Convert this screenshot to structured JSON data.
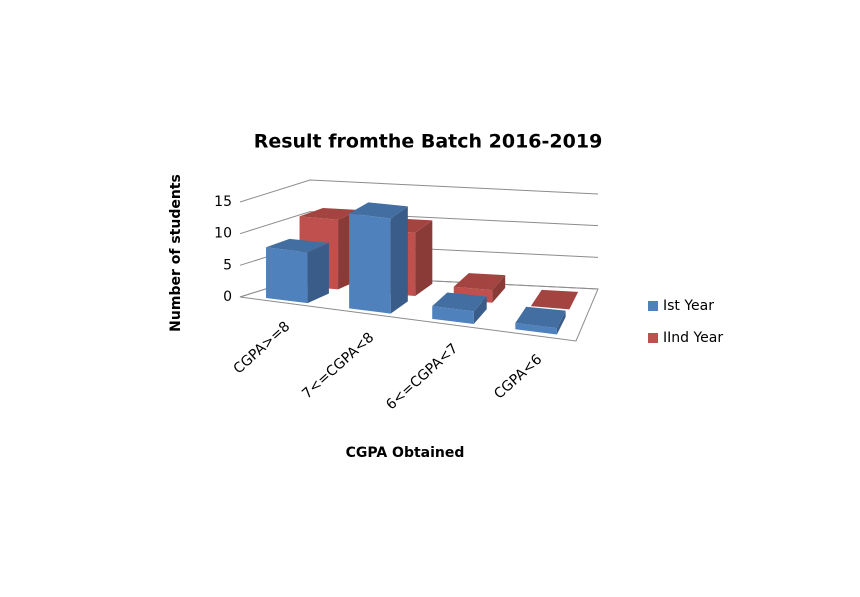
{
  "chart_data": {
    "type": "bar3d",
    "title": "Result fromthe Batch 2016-2019",
    "x_label": "CGPA Obtained",
    "y_label": "Number of students",
    "categories": [
      "CGPA>=8",
      "7<=CGPA<8",
      "6<=CGPA<7",
      "CGPA<6"
    ],
    "series": [
      {
        "name": "Ist Year",
        "color": "#4f81bd",
        "values": [
          8,
          15,
          2,
          1
        ]
      },
      {
        "name": "IInd Year",
        "color": "#c0504d",
        "values": [
          11,
          10,
          2,
          0
        ]
      }
    ],
    "ylim": [
      0,
      15
    ],
    "yticks": [
      0,
      5,
      10,
      15
    ],
    "grid": true,
    "legend": "right"
  }
}
